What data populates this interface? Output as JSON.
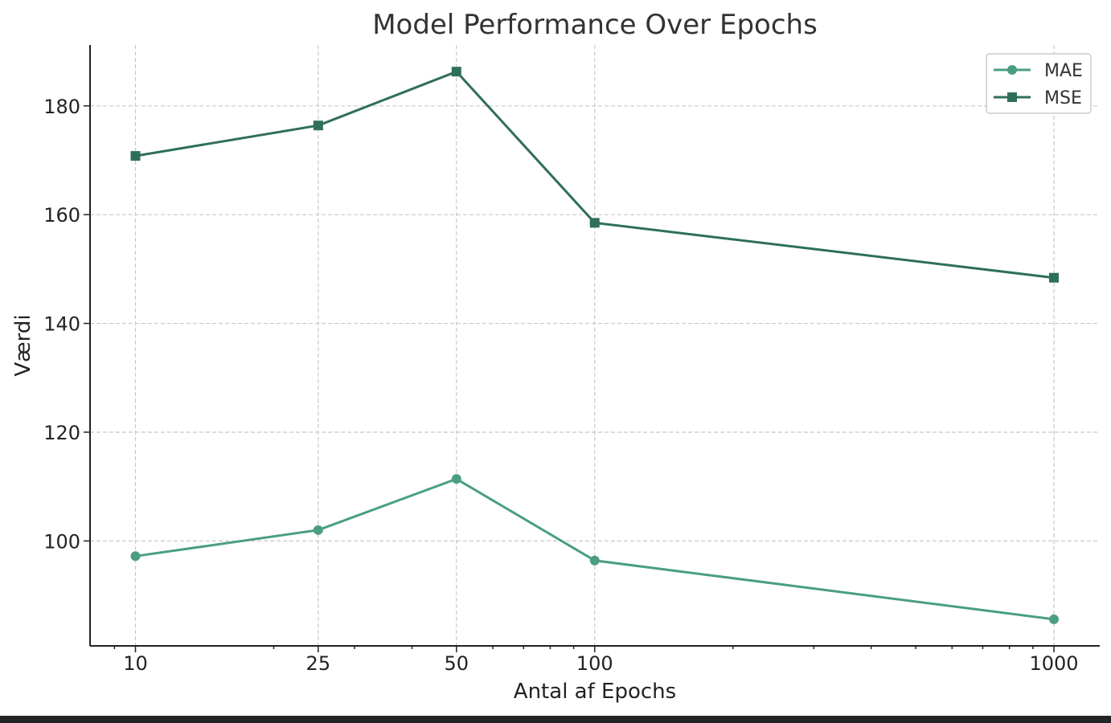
{
  "chart_data": {
    "type": "line",
    "title": "Model Performance Over Epochs",
    "xlabel": "Antal af Epochs",
    "ylabel": "Værdi",
    "xscale": "log",
    "x": [
      10,
      25,
      50,
      100,
      1000
    ],
    "x_tick_labels": [
      "10",
      "25",
      "50",
      "100",
      "1000"
    ],
    "y_ticks": [
      100,
      120,
      140,
      160,
      180
    ],
    "ylim": [
      80.7,
      191.2
    ],
    "grid": true,
    "legend_position": "top-right",
    "series": [
      {
        "name": "MAE",
        "marker": "circle",
        "color": "#4a9e82",
        "values": [
          97.2,
          102.0,
          111.4,
          96.4,
          85.6
        ]
      },
      {
        "name": "MSE",
        "marker": "square",
        "color": "#2f6f59",
        "values": [
          170.8,
          176.4,
          186.3,
          158.5,
          148.4
        ]
      }
    ]
  }
}
